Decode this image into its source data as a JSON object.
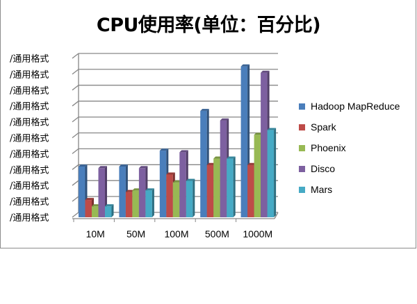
{
  "chart_data": {
    "type": "bar",
    "title": "CPU使用率(单位：百分比)",
    "xlabel": "",
    "ylabel": "",
    "categories": [
      "10M",
      "50M",
      "100M",
      "500M",
      "1000M"
    ],
    "y_tick_labels": [
      "/通用格式",
      "/通用格式",
      "/通用格式",
      "/通用格式",
      "/通用格式",
      "/通用格式",
      "/通用格式",
      "/通用格式",
      "/通用格式",
      "/通用格式",
      "/通用格式"
    ],
    "ylim": [
      0,
      100
    ],
    "grid": true,
    "legend_position": "right",
    "series": [
      {
        "name": "Hadoop MapReduce",
        "color": "#4a7ebb",
        "values": [
          31,
          31,
          41,
          66,
          94
        ]
      },
      {
        "name": "Spark",
        "color": "#be4b48",
        "values": [
          10,
          15,
          26,
          32,
          32
        ]
      },
      {
        "name": "Phoenix",
        "color": "#98b954",
        "values": [
          6,
          16,
          21,
          36,
          51
        ]
      },
      {
        "name": "Disco",
        "color": "#7d60a0",
        "values": [
          30,
          30,
          40,
          60,
          90
        ]
      },
      {
        "name": "Mars",
        "color": "#46aac5",
        "values": [
          6,
          16,
          22,
          36,
          54
        ]
      }
    ]
  }
}
